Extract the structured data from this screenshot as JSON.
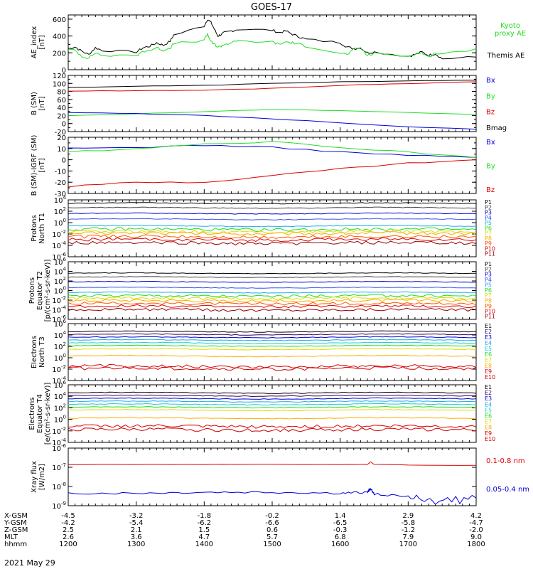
{
  "title": "GOES-17",
  "date_label": "2021 May 29",
  "chart_data": [
    {
      "id": "ae",
      "type": "line",
      "ylabel": [
        "AE_index",
        "[nT]"
      ],
      "ylim": [
        0,
        650
      ],
      "log": false,
      "yticks": [
        0,
        200,
        400,
        600
      ],
      "legend": [
        {
          "text": "Kyoto",
          "color": "#22dd22"
        },
        {
          "text": "proxy AE",
          "color": "#22dd22"
        },
        {
          "text": "Themis AE",
          "color": "#000000"
        }
      ],
      "series": [
        {
          "name": "Themis AE",
          "color": "#000000",
          "x": [
            1200,
            1210,
            1220,
            1230,
            1240,
            1250,
            1300,
            1310,
            1320,
            1330,
            1340,
            1350,
            1355,
            1400,
            1405,
            1410,
            1415,
            1420,
            1425,
            1430,
            1440,
            1450,
            1500,
            1510,
            1520,
            1530,
            1540,
            1550,
            1600,
            1610,
            1620,
            1630,
            1640,
            1650,
            1700,
            1710,
            1720,
            1730,
            1740,
            1750,
            1800
          ],
          "y": [
            250,
            270,
            220,
            180,
            260,
            230,
            210,
            260,
            280,
            320,
            290,
            340,
            410,
            520,
            600,
            560,
            480,
            400,
            420,
            440,
            460,
            480,
            470,
            440,
            460,
            420,
            390,
            360,
            320,
            270,
            250,
            260,
            200,
            210,
            160,
            180,
            210,
            170,
            190,
            130,
            150
          ]
        },
        {
          "name": "Kyoto proxy AE",
          "color": "#22dd22",
          "x": [
            1200,
            1210,
            1220,
            1230,
            1240,
            1250,
            1300,
            1310,
            1320,
            1330,
            1340,
            1350,
            1355,
            1400,
            1405,
            1410,
            1415,
            1420,
            1425,
            1430,
            1440,
            1450,
            1500,
            1510,
            1520,
            1530,
            1540,
            1550,
            1600,
            1610,
            1620,
            1630,
            1640,
            1650,
            1700,
            1710,
            1720,
            1730,
            1740,
            1750,
            1800
          ],
          "y": [
            240,
            230,
            160,
            140,
            200,
            170,
            160,
            220,
            230,
            260,
            230,
            260,
            310,
            350,
            420,
            330,
            300,
            270,
            280,
            300,
            320,
            340,
            330,
            300,
            330,
            320,
            300,
            280,
            200,
            180,
            240,
            260,
            170,
            190,
            160,
            190,
            200,
            150,
            200,
            180,
            250
          ]
        }
      ]
    },
    {
      "id": "bsm",
      "type": "line",
      "ylabel": [
        "B (SM)",
        "[nT]"
      ],
      "ylim": [
        -20,
        120
      ],
      "log": false,
      "yticks": [
        -20,
        0,
        20,
        40,
        60,
        80,
        100,
        120
      ],
      "legend": [
        {
          "text": "Bx",
          "color": "#0000dd"
        },
        {
          "text": "By",
          "color": "#22dd22"
        },
        {
          "text": "Bz",
          "color": "#dd0000"
        },
        {
          "text": "Bmag",
          "color": "#000000"
        }
      ],
      "series": [
        {
          "name": "Bmag",
          "color": "#000000",
          "x": [
            1200,
            1300,
            1400,
            1500,
            1600,
            1700,
            1800
          ],
          "y": [
            90,
            93,
            95,
            100,
            104,
            106,
            108
          ]
        },
        {
          "name": "Bz",
          "color": "#dd0000",
          "x": [
            1200,
            1300,
            1400,
            1500,
            1600,
            1700,
            1800
          ],
          "y": [
            81,
            82,
            83,
            88,
            95,
            100,
            104
          ]
        },
        {
          "name": "By",
          "color": "#22dd22",
          "x": [
            1200,
            1300,
            1400,
            1500,
            1600,
            1700,
            1800
          ],
          "y": [
            20,
            24,
            30,
            35,
            32,
            28,
            22
          ]
        },
        {
          "name": "Bx",
          "color": "#0000dd",
          "x": [
            1200,
            1300,
            1400,
            1500,
            1600,
            1700,
            1800
          ],
          "y": [
            27,
            25,
            20,
            12,
            2,
            -8,
            -14
          ]
        }
      ]
    },
    {
      "id": "bigrf",
      "type": "line",
      "ylabel": [
        "B (SM)-IGRF (SM)",
        "[nT]"
      ],
      "ylim": [
        -30,
        20
      ],
      "log": false,
      "yticks": [
        -30,
        -20,
        -10,
        0,
        10,
        20
      ],
      "legend": [
        {
          "text": "Bx",
          "color": "#0000dd"
        },
        {
          "text": "By",
          "color": "#22dd22"
        },
        {
          "text": "Bz",
          "color": "#dd0000"
        }
      ],
      "series": [
        {
          "name": "Bx",
          "color": "#0000dd",
          "x": [
            1200,
            1300,
            1400,
            1500,
            1600,
            1700,
            1800
          ],
          "y": [
            10,
            11,
            13,
            11,
            7,
            4,
            2
          ]
        },
        {
          "name": "By",
          "color": "#22dd22",
          "x": [
            1200,
            1300,
            1400,
            1500,
            1600,
            1700,
            1800
          ],
          "y": [
            7,
            10,
            14,
            16,
            11,
            7,
            2
          ]
        },
        {
          "name": "Bz",
          "color": "#dd0000",
          "x": [
            1200,
            1300,
            1400,
            1500,
            1600,
            1700,
            1800
          ],
          "y": [
            -24,
            -20,
            -20,
            -14,
            -8,
            -3,
            0
          ]
        }
      ]
    },
    {
      "id": "pn",
      "type": "line",
      "ylabel": [
        "Protons",
        "North T1"
      ],
      "ylim": [
        -6,
        4
      ],
      "log": true,
      "yticks": [
        -6,
        -4,
        -2,
        0,
        2,
        4
      ],
      "legend": [
        {
          "text": "P1",
          "color": "#000000"
        },
        {
          "text": "P2",
          "color": "#444444"
        },
        {
          "text": "P3",
          "color": "#0000cc"
        },
        {
          "text": "P4",
          "color": "#3355ee"
        },
        {
          "text": "P5",
          "color": "#22aaee"
        },
        {
          "text": "P6",
          "color": "#22dd22"
        },
        {
          "text": "P7",
          "color": "#dddd00"
        },
        {
          "text": "P8",
          "color": "#ffaa00"
        },
        {
          "text": "P9",
          "color": "#ff5500"
        },
        {
          "text": "P10",
          "color": "#dd0000"
        },
        {
          "text": "P11",
          "color": "#990000"
        }
      ],
      "series": [
        {
          "name": "P1",
          "color": "#000000",
          "level": 3.4
        },
        {
          "name": "P2",
          "color": "#444444",
          "level": 2.6
        },
        {
          "name": "P3",
          "color": "#0000cc",
          "level": 1.6
        },
        {
          "name": "P4",
          "color": "#3355ee",
          "level": 0.6
        },
        {
          "name": "P5",
          "color": "#22aaee",
          "level": -0.6
        },
        {
          "name": "P6",
          "color": "#22dd22",
          "level": -1.2
        },
        {
          "name": "P7",
          "color": "#dddd00",
          "level": -1.6
        },
        {
          "name": "P8",
          "color": "#ffaa00",
          "level": -1.9
        },
        {
          "name": "P9",
          "color": "#ff5500",
          "level": -2.5
        },
        {
          "name": "P10",
          "color": "#dd0000",
          "level": -3.0
        },
        {
          "name": "P11",
          "color": "#990000",
          "level": -3.6
        }
      ]
    },
    {
      "id": "pe",
      "type": "line",
      "ylabel": [
        "Protons",
        "Equator T2",
        "[p/(cm²-s-sr-keV)]"
      ],
      "ylim": [
        -6,
        6
      ],
      "log": true,
      "yticks": [
        -6,
        -4,
        -2,
        0,
        2,
        4,
        6
      ],
      "legend": [
        {
          "text": "P1",
          "color": "#000000"
        },
        {
          "text": "P2",
          "color": "#444444"
        },
        {
          "text": "P3",
          "color": "#0000cc"
        },
        {
          "text": "P4",
          "color": "#3355ee"
        },
        {
          "text": "P5",
          "color": "#22aaee"
        },
        {
          "text": "P6",
          "color": "#22dd22"
        },
        {
          "text": "P7",
          "color": "#dddd00"
        },
        {
          "text": "P8",
          "color": "#ffaa00"
        },
        {
          "text": "P9",
          "color": "#ff5500"
        },
        {
          "text": "P10",
          "color": "#dd0000"
        },
        {
          "text": "P11",
          "color": "#990000"
        }
      ],
      "series": [
        {
          "name": "P1",
          "color": "#000000",
          "level": 3.6
        },
        {
          "name": "P2",
          "color": "#444444",
          "level": 2.8
        },
        {
          "name": "P3",
          "color": "#0000cc",
          "level": 1.8
        },
        {
          "name": "P4",
          "color": "#3355ee",
          "level": 0.6
        },
        {
          "name": "P5",
          "color": "#22aaee",
          "level": -0.4
        },
        {
          "name": "P6",
          "color": "#22dd22",
          "level": -1.1
        },
        {
          "name": "P7",
          "color": "#dddd00",
          "level": -1.6
        },
        {
          "name": "P8",
          "color": "#ffaa00",
          "level": -2.1
        },
        {
          "name": "P9",
          "color": "#ff5500",
          "level": -2.7
        },
        {
          "name": "P10",
          "color": "#dd0000",
          "level": -3.3
        },
        {
          "name": "P11",
          "color": "#990000",
          "level": -4.0
        }
      ]
    },
    {
      "id": "en",
      "type": "line",
      "ylabel": [
        "Electrons",
        "North T3"
      ],
      "ylim": [
        -4,
        6
      ],
      "log": true,
      "yticks": [
        -4,
        -2,
        0,
        2,
        4,
        6
      ],
      "legend": [
        {
          "text": "E1",
          "color": "#000000"
        },
        {
          "text": "E2",
          "color": "#330066"
        },
        {
          "text": "E3",
          "color": "#0000cc"
        },
        {
          "text": "E4",
          "color": "#22aaee"
        },
        {
          "text": "E5",
          "color": "#22cccc"
        },
        {
          "text": "E6",
          "color": "#22dd22"
        },
        {
          "text": "E7",
          "color": "#dddd00"
        },
        {
          "text": "E8",
          "color": "#ffaa00"
        },
        {
          "text": "E9",
          "color": "#dd0000"
        },
        {
          "text": "E10",
          "color": "#cc0000"
        }
      ],
      "series": [
        {
          "name": "E1",
          "color": "#000000",
          "level": 4.6
        },
        {
          "name": "E2",
          "color": "#330066",
          "level": 4.1
        },
        {
          "name": "E3",
          "color": "#0000cc",
          "level": 3.6
        },
        {
          "name": "E4",
          "color": "#22aaee",
          "level": 3.1
        },
        {
          "name": "E5",
          "color": "#22cccc",
          "level": 2.6
        },
        {
          "name": "E6",
          "color": "#22dd22",
          "level": 2.1
        },
        {
          "name": "E7",
          "color": "#dddd00",
          "level": 1.5
        },
        {
          "name": "E8",
          "color": "#ffaa00",
          "level": 0.3
        },
        {
          "name": "E9",
          "color": "#dd0000",
          "level": -1.5
        },
        {
          "name": "E10",
          "color": "#cc0000",
          "level": -1.9
        }
      ]
    },
    {
      "id": "ee",
      "type": "line",
      "ylabel": [
        "Electrons",
        "Equator T4",
        "[e/(cm²-s-sr-keV)]"
      ],
      "ylim": [
        -4,
        6
      ],
      "log": true,
      "yticks": [
        -4,
        -2,
        0,
        2,
        4,
        6
      ],
      "legend": [
        {
          "text": "E1",
          "color": "#000000"
        },
        {
          "text": "E2",
          "color": "#330066"
        },
        {
          "text": "E3",
          "color": "#0000cc"
        },
        {
          "text": "E4",
          "color": "#22aaee"
        },
        {
          "text": "E5",
          "color": "#22cccc"
        },
        {
          "text": "E6",
          "color": "#22dd22"
        },
        {
          "text": "E7",
          "color": "#dddd00"
        },
        {
          "text": "E8",
          "color": "#ffaa00"
        },
        {
          "text": "E9",
          "color": "#dd0000"
        },
        {
          "text": "E10",
          "color": "#cc0000"
        }
      ],
      "series": [
        {
          "name": "E1",
          "color": "#000000",
          "level": 4.6
        },
        {
          "name": "E2",
          "color": "#330066",
          "level": 4.1
        },
        {
          "name": "E3",
          "color": "#0000cc",
          "level": 3.6
        },
        {
          "name": "E4",
          "color": "#22aaee",
          "level": 3.1
        },
        {
          "name": "E5",
          "color": "#22cccc",
          "level": 2.6
        },
        {
          "name": "E6",
          "color": "#22dd22",
          "level": 2.1
        },
        {
          "name": "E7",
          "color": "#dddd00",
          "level": 1.6
        },
        {
          "name": "E8",
          "color": "#ffaa00",
          "level": 0.2
        },
        {
          "name": "E9",
          "color": "#dd0000",
          "level": -1.2
        },
        {
          "name": "E10",
          "color": "#cc0000",
          "level": -1.8
        }
      ]
    },
    {
      "id": "xray",
      "type": "line",
      "ylabel": [
        "Xray flux",
        "[W/m2]"
      ],
      "ylim": [
        -9,
        -6
      ],
      "log": true,
      "yticks": [
        -9,
        -8,
        -7,
        -6
      ],
      "legend": [
        {
          "text": "0.1-0.8 nm",
          "color": "#dd0000"
        },
        {
          "text": "0.05-0.4 nm",
          "color": "#0000dd"
        }
      ],
      "series": [
        {
          "name": "0.1-0.8 nm",
          "color": "#dd0000",
          "x": [
            1200,
            1300,
            1400,
            1500,
            1600,
            1640,
            1645,
            1650,
            1700,
            1800
          ],
          "y": [
            -6.85,
            -6.85,
            -6.85,
            -6.85,
            -6.85,
            -6.85,
            -6.72,
            -6.85,
            -6.88,
            -6.9
          ]
        },
        {
          "name": "0.05-0.4 nm",
          "color": "#0000dd",
          "x": [
            1200,
            1300,
            1400,
            1500,
            1600,
            1640,
            1645,
            1650,
            1700,
            1740,
            1800
          ],
          "y": [
            -8.35,
            -8.35,
            -8.3,
            -8.3,
            -8.35,
            -8.3,
            -8.1,
            -8.4,
            -8.5,
            -8.8,
            -8.6
          ]
        }
      ]
    }
  ],
  "x_axis": {
    "xlim": [
      1200,
      1800
    ],
    "row_labels": [
      "X-GSM",
      "Y-GSM",
      "Z-GSM",
      "MLT",
      "hhmm"
    ],
    "rows": [
      [
        "-4.5",
        "-3.2",
        "-1.8",
        "-0.2",
        "1.4",
        "2.9",
        "4.2"
      ],
      [
        "-4.2",
        "-5.4",
        "-6.2",
        "-6.6",
        "-6.5",
        "-5.8",
        "-4.7"
      ],
      [
        "2.5",
        "2.1",
        "1.5",
        "0.6",
        "-0.3",
        "-1.2",
        "-2.0"
      ],
      [
        "2.6",
        "3.6",
        "4.7",
        "5.7",
        "6.8",
        "7.9",
        "9.0"
      ],
      [
        "1200",
        "1300",
        "1400",
        "1500",
        "1600",
        "1700",
        "1800"
      ]
    ]
  }
}
